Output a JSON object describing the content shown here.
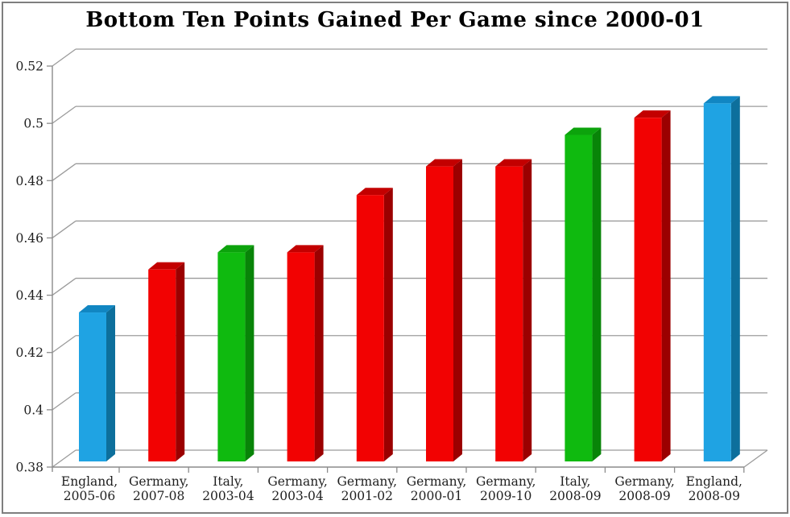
{
  "page": {
    "background_color": "#FFFFFF",
    "frame_border_color": "#7F7F7F"
  },
  "chart_data": {
    "type": "bar",
    "style": "3d-column",
    "title": "Bottom Ten Points Gained Per Game since 2000-01",
    "categories": [
      "England, 2005-06",
      "Germany, 2007-08",
      "Italy, 2003-04",
      "Germany, 2003-04",
      "Germany, 2001-02",
      "Germany, 2000-01",
      "Germany, 2009-10",
      "Italy, 2008-09",
      "Germany, 2008-09",
      "England, 2008-09"
    ],
    "values": [
      0.432,
      0.447,
      0.453,
      0.453,
      0.473,
      0.483,
      0.483,
      0.494,
      0.5,
      0.505
    ],
    "bar_colors": [
      "blue",
      "red",
      "green",
      "red",
      "red",
      "red",
      "red",
      "green",
      "red",
      "blue"
    ],
    "palette": {
      "blue": {
        "front": "#1FA3E3",
        "top": "#1186C2",
        "side": "#0D6F9C"
      },
      "red": {
        "front": "#F20202",
        "top": "#C30000",
        "side": "#9B0000"
      },
      "green": {
        "front": "#0FBA0F",
        "top": "#0CA30C",
        "side": "#088408"
      }
    },
    "xlabel": "",
    "ylabel": "",
    "y_axis": {
      "min": 0.38,
      "max": 0.52,
      "tick_step": 0.02,
      "tick_labels": [
        "0.38",
        "0.4",
        "0.42",
        "0.44",
        "0.46",
        "0.48",
        "0.5",
        "0.52"
      ]
    },
    "grid": true,
    "legend": false,
    "colors": {
      "gridline": "#9B9B9B",
      "axis": "#8C8C8C",
      "text": "#1F1F1F"
    }
  }
}
